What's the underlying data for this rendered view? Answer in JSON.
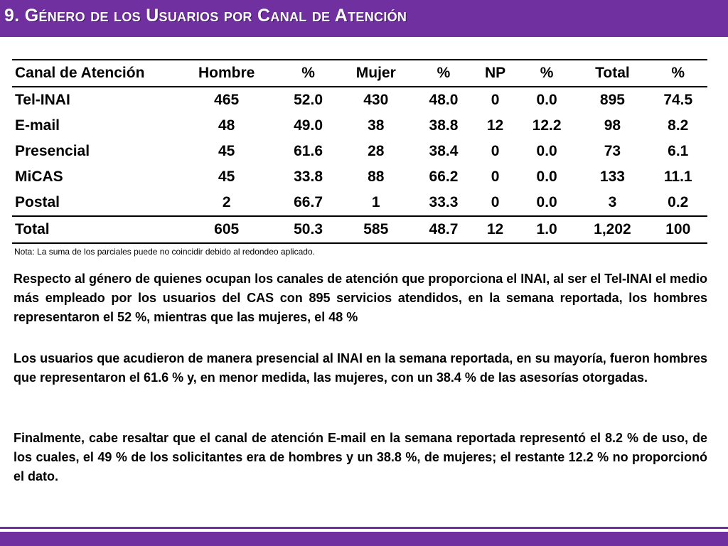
{
  "title": "9. Género de los Usuarios por Canal de Atención",
  "table": {
    "headers": [
      "Canal de Atención",
      "Hombre",
      "%",
      "Mujer",
      "%",
      "NP",
      "%",
      "Total",
      "%"
    ],
    "rows": [
      [
        "Tel-INAI",
        "465",
        "52.0",
        "430",
        "48.0",
        "0",
        "0.0",
        "895",
        "74.5"
      ],
      [
        "E-mail",
        "48",
        "49.0",
        "38",
        "38.8",
        "12",
        "12.2",
        "98",
        "8.2"
      ],
      [
        "Presencial",
        "45",
        "61.6",
        "28",
        "38.4",
        "0",
        "0.0",
        "73",
        "6.1"
      ],
      [
        "MiCAS",
        "45",
        "33.8",
        "88",
        "66.2",
        "0",
        "0.0",
        "133",
        "11.1"
      ],
      [
        "Postal",
        "2",
        "66.7",
        "1",
        "33.3",
        "0",
        "0.0",
        "3",
        "0.2"
      ]
    ],
    "total": [
      "Total",
      "605",
      "50.3",
      "585",
      "48.7",
      "12",
      "1.0",
      "1,202",
      "100"
    ]
  },
  "note": "Nota: La suma de los parciales puede no coincidir debido al redondeo aplicado.",
  "paragraphs": [
    "Respecto al género de quienes ocupan los canales de atención que proporciona el INAI, al ser el Tel-INAI el medio más empleado por los usuarios del CAS con 895 servicios atendidos, en la semana reportada, los hombres representaron el 52 %, mientras que las mujeres, el 48 %",
    "Los usuarios que acudieron de manera presencial al INAI en la semana reportada, en su mayoría, fueron hombres que representaron el 61.6 % y, en menor medida, las mujeres, con un 38.4 % de las asesorías otorgadas.",
    "Finalmente, cabe resaltar que el canal de atención E-mail en la semana reportada representó el 8.2 % de uso, de los cuales, el 49 % de los solicitantes era de hombres y un 38.8 %, de mujeres; el restante 12.2 % no proporcionó el dato."
  ],
  "colors": {
    "accent": "#7030a0"
  }
}
